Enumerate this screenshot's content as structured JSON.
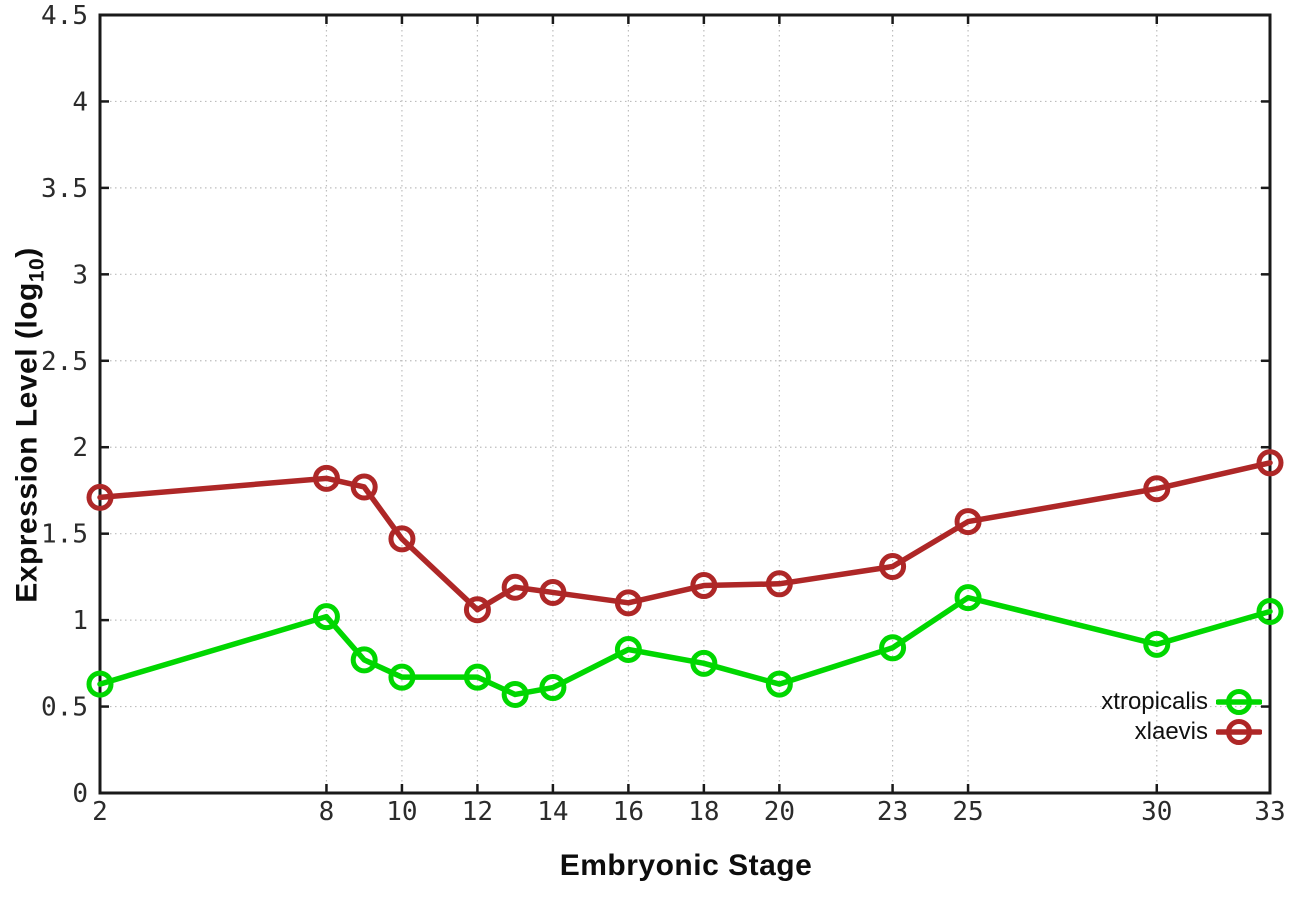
{
  "figure": {
    "background": "#ffffff",
    "xlabel": "Embryonic Stage",
    "ylabel_prefix": "Expression Level (log",
    "ylabel_subscript": "10",
    "ylabel_suffix": ")"
  },
  "chart_data": {
    "type": "line",
    "title": "",
    "xlabel": "Embryonic Stage",
    "ylabel": "Expression Level (log10)",
    "x": [
      2,
      8,
      9,
      10,
      12,
      13,
      14,
      16,
      18,
      20,
      23,
      25,
      30,
      33
    ],
    "x_tick_values": [
      2,
      8,
      10,
      12,
      14,
      16,
      18,
      20,
      23,
      25,
      30,
      33
    ],
    "x_tick_labels": [
      "2",
      "8",
      "10",
      "12",
      "14",
      "16",
      "18",
      "20",
      "23",
      "25",
      "30",
      "33"
    ],
    "y_tick_values": [
      0,
      0.5,
      1,
      1.5,
      2,
      2.5,
      3,
      3.5,
      4,
      4.5
    ],
    "y_tick_labels": [
      "0",
      "0.5",
      "1",
      "1.5",
      "2",
      "2.5",
      "3",
      "3.5",
      "4",
      "4.5"
    ],
    "xlim": [
      2,
      33
    ],
    "ylim": [
      0,
      4.5
    ],
    "grid": true,
    "legend_position": "bottom-right-inside",
    "marker": "open-circle",
    "axis_color": "#1a1a1a",
    "grid_color": "#bdbdbd",
    "tick_label_color": "#2b2b2b",
    "series": [
      {
        "name": "xtropicalis",
        "color": "#00d700",
        "values": [
          0.63,
          1.02,
          0.77,
          0.67,
          0.67,
          0.57,
          0.61,
          0.83,
          0.75,
          0.63,
          0.84,
          1.13,
          0.86,
          1.05
        ]
      },
      {
        "name": "xlaevis",
        "color": "#ae2727",
        "values": [
          1.71,
          1.82,
          1.77,
          1.47,
          1.06,
          1.19,
          1.16,
          1.1,
          1.2,
          1.21,
          1.31,
          1.57,
          1.76,
          1.91
        ]
      }
    ]
  }
}
